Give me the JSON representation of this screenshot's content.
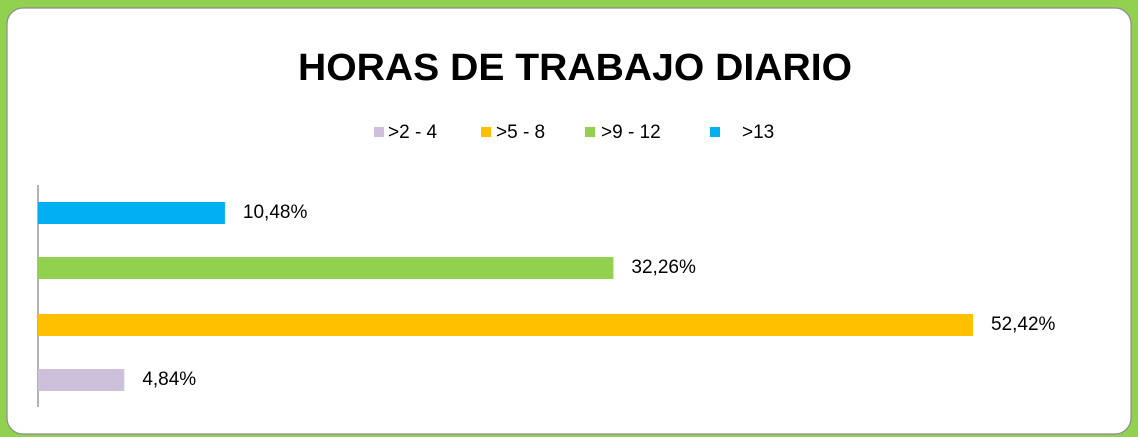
{
  "chart_data": {
    "type": "bar",
    "orientation": "horizontal",
    "title": "HORAS DE TRABAJO DIARIO",
    "series": [
      {
        "name": ">2 - 4",
        "color": "#ccc0da",
        "values": [
          4.84
        ],
        "value_labels": [
          "4,84%"
        ]
      },
      {
        "name": ">5 - 8",
        "color": "#ffc000",
        "values": [
          52.42
        ],
        "value_labels": [
          "52,42%"
        ]
      },
      {
        "name": ">9 - 12",
        "color": "#92d050",
        "values": [
          32.26
        ],
        "value_labels": [
          "32,26%"
        ]
      },
      {
        "name": ">13",
        "color": "#00b0f0",
        "values": [
          10.48
        ],
        "value_labels": [
          "10,48%"
        ]
      }
    ],
    "legend": "top",
    "grid": false
  }
}
